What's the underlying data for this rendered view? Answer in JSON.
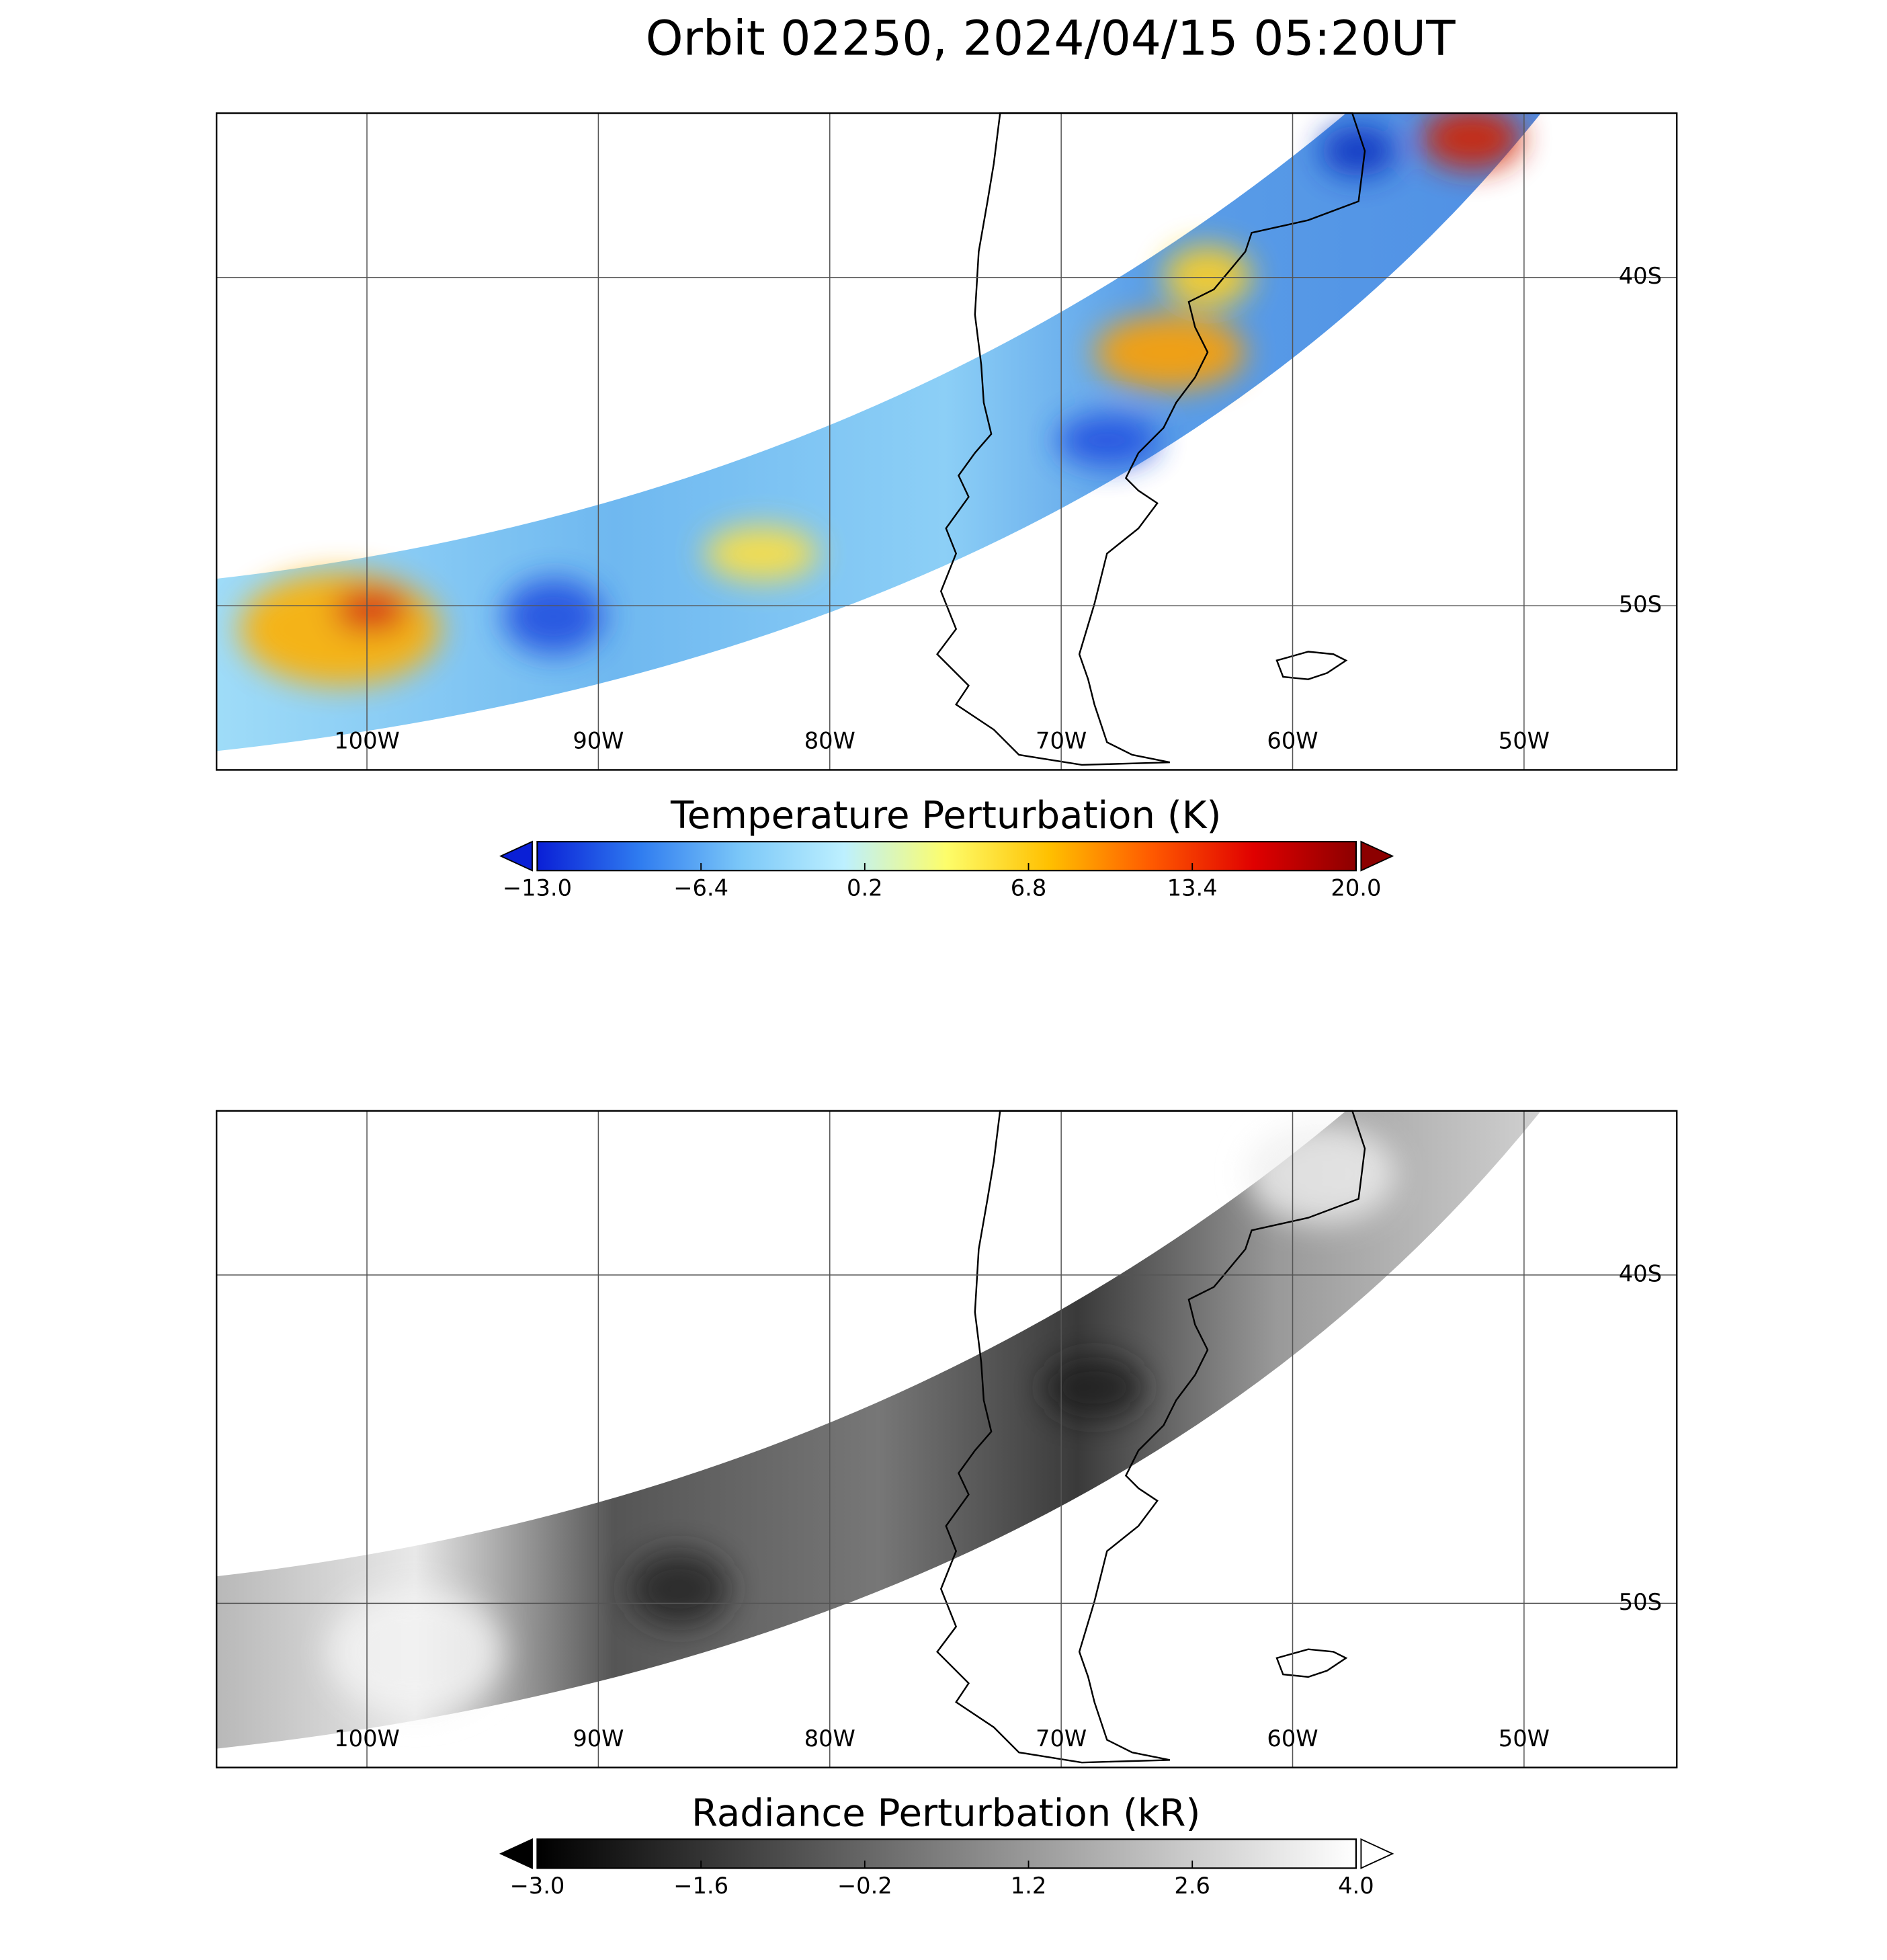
{
  "title": "Orbit 02250, 2024/04/15 05:20UT",
  "chart_data": [
    {
      "type": "map",
      "xlim": [
        -106.5,
        -43.4
      ],
      "ylim": [
        -55,
        -35
      ],
      "xticks": [
        {
          "value": -100,
          "label": "100W"
        },
        {
          "value": -90,
          "label": "90W"
        },
        {
          "value": -80,
          "label": "80W"
        },
        {
          "value": -70,
          "label": "70W"
        },
        {
          "value": -60,
          "label": "60W"
        },
        {
          "value": -50,
          "label": "50W"
        }
      ],
      "yticks": [
        {
          "value": -40,
          "label": "40S"
        },
        {
          "value": -50,
          "label": "50S"
        }
      ],
      "grid": true,
      "colorbar": {
        "label": "Temperature Perturbation (K)",
        "clim": [
          -13,
          20
        ],
        "ticks": [
          {
            "value": -13,
            "label": "−13.0"
          },
          {
            "value": -6.4,
            "label": "−6.4"
          },
          0.2,
          6.8,
          13.4,
          {
            "value": 20,
            "label": "20.0"
          }
        ],
        "colors": [
          "#0a1fd6",
          "#2f7cf0",
          "#7cc8f8",
          "#bdf0ff",
          "#fdfd6a",
          "#ffc000",
          "#ff5a00",
          "#e00000",
          "#8c0000"
        ],
        "under": "#0a1fd6",
        "over": "#8c0000"
      }
    },
    {
      "type": "map",
      "xlim": [
        -106.5,
        -43.4
      ],
      "ylim": [
        -55,
        -35
      ],
      "xticks": [
        {
          "value": -100,
          "label": "100W"
        },
        {
          "value": -90,
          "label": "90W"
        },
        {
          "value": -80,
          "label": "80W"
        },
        {
          "value": -70,
          "label": "70W"
        },
        {
          "value": -60,
          "label": "60W"
        },
        {
          "value": -50,
          "label": "50W"
        }
      ],
      "yticks": [
        {
          "value": -40,
          "label": "40S"
        },
        {
          "value": -50,
          "label": "50S"
        }
      ],
      "grid": true,
      "colorbar": {
        "label": "Radiance Perturbation (kR)",
        "clim": [
          -3,
          4
        ],
        "ticks": [
          {
            "value": -3,
            "label": "−3.0"
          },
          {
            "value": -1.6,
            "label": "−1.6"
          },
          {
            "value": -0.2,
            "label": "−0.2"
          },
          1.2,
          2.6,
          {
            "value": 4,
            "label": "4.0"
          }
        ],
        "colors": [
          "#000000",
          "#ffffff"
        ],
        "under": "#000000",
        "over": "#ffffff"
      }
    }
  ]
}
